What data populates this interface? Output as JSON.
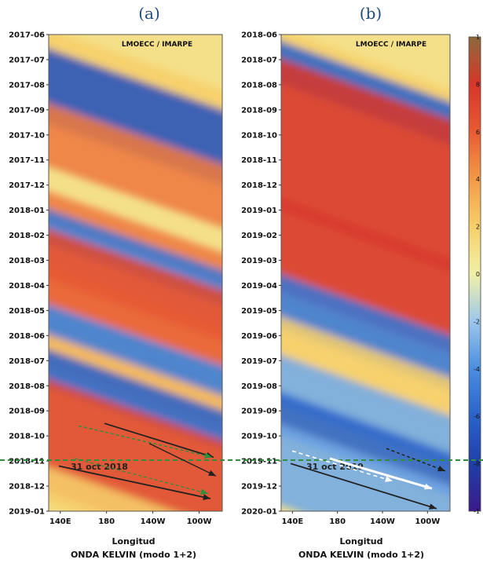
{
  "chart_data": [
    {
      "type": "heatmap",
      "panel_label": "(a)",
      "inset_label": "LMOECC / IMARPE",
      "y_ticks": [
        "2017-06",
        "2017-07",
        "2017-08",
        "2017-09",
        "2017-10",
        "2017-11",
        "2017-12",
        "2018-01",
        "2018-02",
        "2018-03",
        "2018-04",
        "2018-05",
        "2018-06",
        "2018-07",
        "2018-08",
        "2018-09",
        "2018-10",
        "2018-11",
        "2018-12",
        "2019-01"
      ],
      "x_ticks": [
        "140E",
        "180",
        "140W",
        "100W"
      ],
      "xlabel": "Longitud",
      "subtitle": "ONDA KELVIN (modo 1+2)",
      "marker_text": "31 oct 2018",
      "marker_date": "2018-10-31",
      "bands": [
        {
          "start": 0.0,
          "end": 1.0,
          "value": 2
        },
        {
          "start": 0.8,
          "end": 3.8,
          "value": -7
        },
        {
          "start": 3.0,
          "end": 5.5,
          "value": 5
        },
        {
          "start": 6.5,
          "end": 7.7,
          "value": 5
        },
        {
          "start": 7.2,
          "end": 8.6,
          "value": -5
        },
        {
          "start": 8.0,
          "end": 10.0,
          "value": 7
        },
        {
          "start": 9.5,
          "end": 11.0,
          "value": 6
        },
        {
          "start": 11.0,
          "end": 12.3,
          "value": -5
        },
        {
          "start": 12.2,
          "end": 13.5,
          "value": 3
        },
        {
          "start": 12.8,
          "end": 14.3,
          "value": -6
        },
        {
          "start": 14.0,
          "end": 18.5,
          "value": 7
        },
        {
          "start": 17.5,
          "end": 19.0,
          "value": 2
        }
      ]
    },
    {
      "type": "heatmap",
      "panel_label": "(b)",
      "inset_label": "LMOECC / IMARPE",
      "y_ticks": [
        "2018-06",
        "2018-07",
        "2018-08",
        "2018-09",
        "2018-10",
        "2018-11",
        "2018-12",
        "2019-01",
        "2019-02",
        "2019-03",
        "2019-04",
        "2019-05",
        "2019-06",
        "2019-07",
        "2019-08",
        "2019-09",
        "2019-10",
        "2019-11",
        "2019-12",
        "2020-01"
      ],
      "x_ticks": [
        "140E",
        "180",
        "140W",
        "100W"
      ],
      "xlabel": "Longitud",
      "subtitle": "ONDA KELVIN (modo 1+2)",
      "marker_text": "31 oct 2019",
      "marker_date": "2019-10-31",
      "colorbar_ticks": [
        "1",
        "8",
        "6",
        "4",
        "2",
        "0",
        "-2",
        "-4",
        "-6",
        "-8",
        "-1"
      ],
      "bands": [
        {
          "start": 0.0,
          "end": 1.2,
          "value": 2
        },
        {
          "start": 0.5,
          "end": 2.2,
          "value": -6
        },
        {
          "start": 1.2,
          "end": 7.2,
          "value": 8
        },
        {
          "start": 6.8,
          "end": 10.5,
          "value": 8
        },
        {
          "start": 9.8,
          "end": 12.0,
          "value": -5
        },
        {
          "start": 11.5,
          "end": 13.2,
          "value": 2
        },
        {
          "start": 13.0,
          "end": 15.0,
          "value": -3
        },
        {
          "start": 14.5,
          "end": 16.2,
          "value": -6
        },
        {
          "start": 15.8,
          "end": 19.0,
          "value": -3
        }
      ]
    }
  ]
}
